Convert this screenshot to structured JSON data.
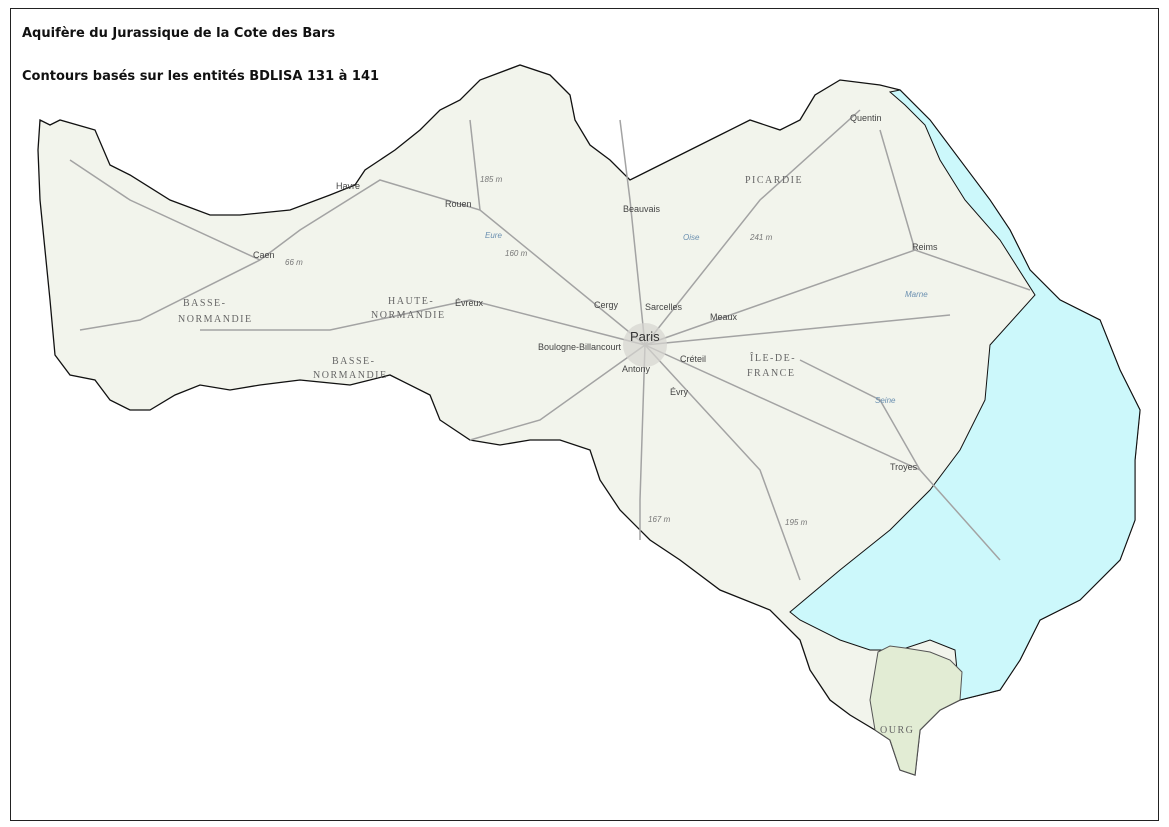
{
  "title": "Aquifère du Jurassique de la Cote des Bars",
  "subtitle": "Contours basés sur les entités BDLISA 131 à 141",
  "colors": {
    "aquifer": "#ccf8fb",
    "basemap": "#f2f4ec",
    "outline": "#111111",
    "roads": "#9a9a9a"
  },
  "map_labels": {
    "quentin": "Quentin",
    "picardie": "PICARDIE",
    "havre": "Havre",
    "rouen": "Rouen",
    "elev_185": "185 m",
    "beauvais": "Beauvais",
    "oise": "Oise",
    "elev_241": "241 m",
    "reims": "Reims",
    "caen": "Caen",
    "elev_66": "66 m",
    "eure": "Eure",
    "elev_160": "160 m",
    "basse_normandie_1a": "BASSE-",
    "basse_normandie_1b": "NORMANDIE",
    "haute_normandie_a": "HAUTE-",
    "haute_normandie_b": "NORMANDIE",
    "evreux": "Évreux",
    "cergy": "Cergy",
    "sarcelles": "Sarcelles",
    "meaux": "Meaux",
    "marne": "Marne",
    "paris": "Paris",
    "boulogne": "Boulogne-Billancourt",
    "creteil": "Créteil",
    "idf_a": "ÎLE-DE-",
    "idf_b": "FRANCE",
    "antony": "Antony",
    "evry": "Évry",
    "seine": "Seine",
    "troyes": "Troyes",
    "elev_167": "167 m",
    "elev_195": "195 m",
    "basse_normandie_2a": "BASSE-",
    "basse_normandie_2b": "NORMANDIE",
    "bourgogne_partial": "OURG"
  }
}
